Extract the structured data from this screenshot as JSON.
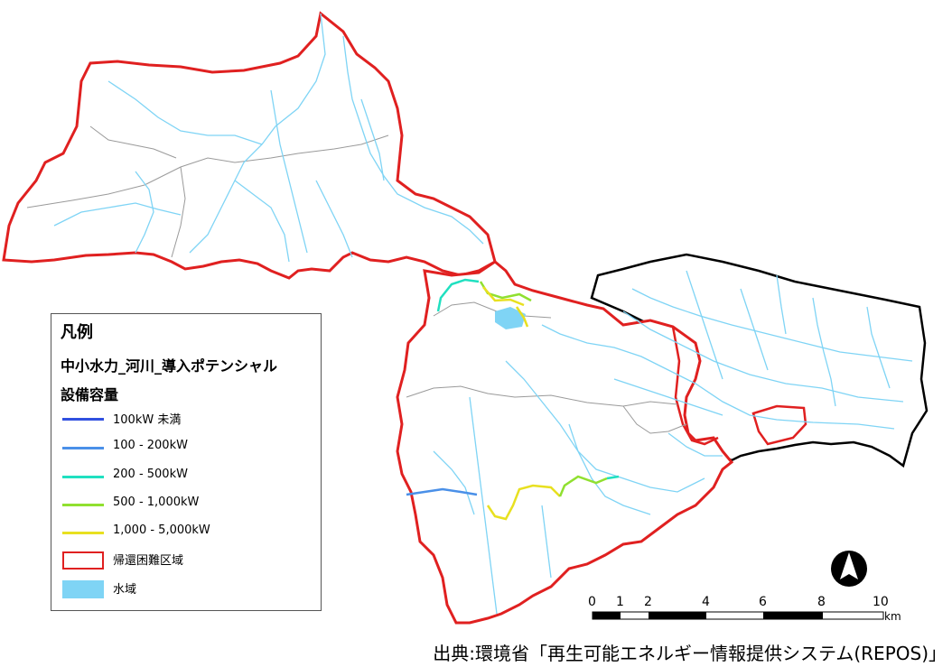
{
  "legend": {
    "title": "凡例",
    "layer": "中小水力_河川_導入ポテンシャル",
    "subtitle": "設備容量",
    "items": [
      {
        "label": "100kW 未満",
        "color": "#3050e0",
        "kind": "line"
      },
      {
        "label": "100 - 200kW",
        "color": "#4a90e8",
        "kind": "line"
      },
      {
        "label": "200 - 500kW",
        "color": "#20e0c0",
        "kind": "line"
      },
      {
        "label": "500 - 1,000kW",
        "color": "#90e030",
        "kind": "line"
      },
      {
        "label": "1,000 - 5,000kW",
        "color": "#e8e020",
        "kind": "line"
      },
      {
        "label": "帰還困難区域",
        "color": "#e02020",
        "kind": "box"
      },
      {
        "label": "水域",
        "color": "#7fd4f5",
        "kind": "fill"
      }
    ]
  },
  "scale_bar": {
    "labels": [
      "0",
      "1",
      "2",
      "4",
      "6",
      "8",
      "10"
    ],
    "unit": "km"
  },
  "north_arrow": "north-arrow-icon",
  "citation": "出典:環境省「再生可能エネルギー情報提供システム(REPOS)」",
  "colors": {
    "boundary_red": "#e02020",
    "boundary_black": "#000000",
    "river": "#7fd4f5",
    "municipal_line": "#9a9a9a"
  }
}
